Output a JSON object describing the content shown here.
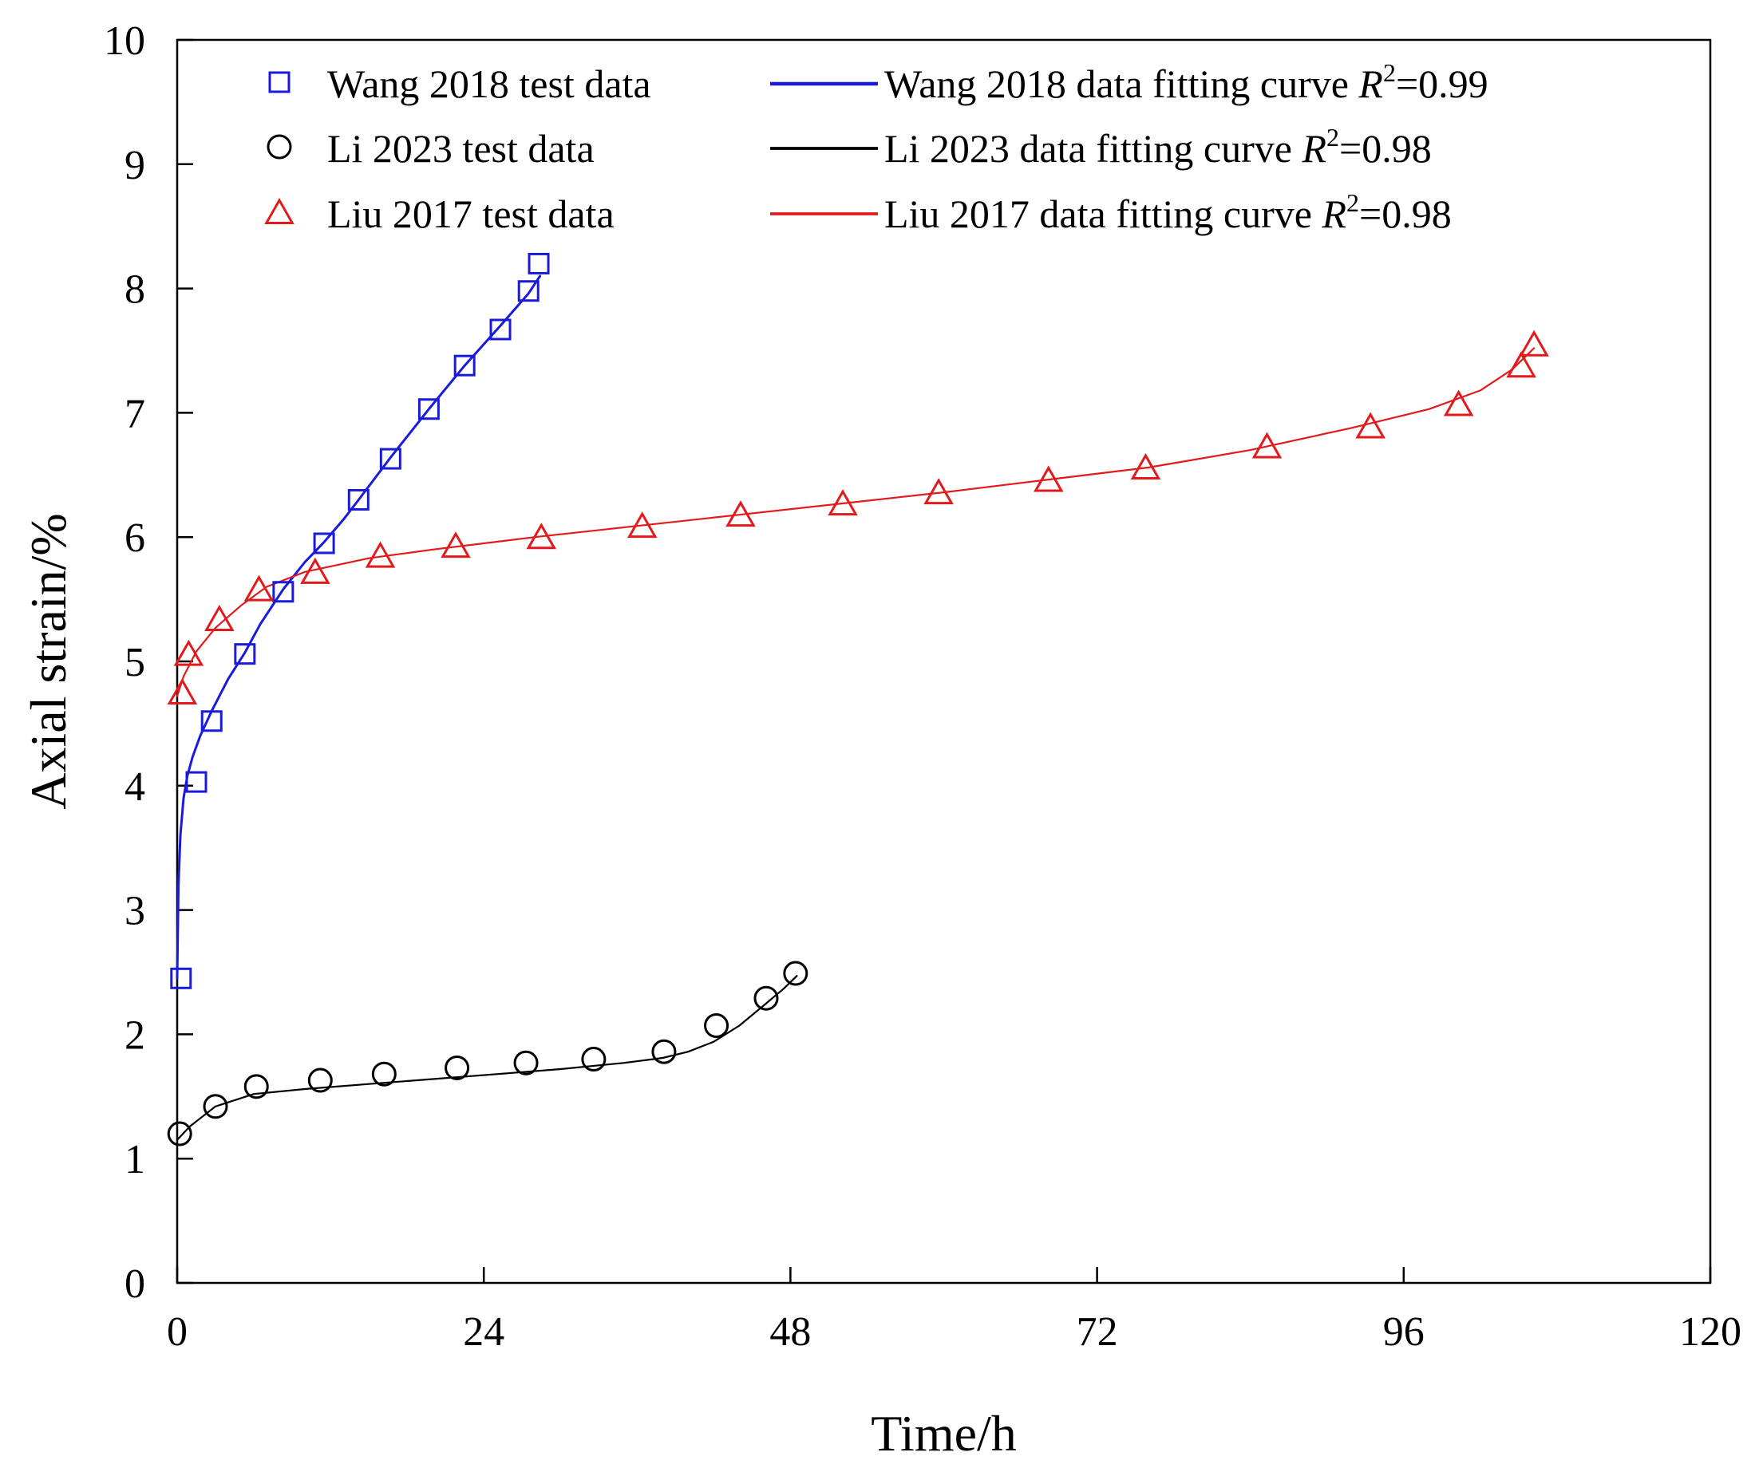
{
  "chart_data": {
    "type": "scatter",
    "title": "",
    "xlabel": "Time/h",
    "ylabel": "Axial strain/%",
    "xlim": [
      0,
      120
    ],
    "ylim": [
      0,
      10
    ],
    "xticks": [
      0,
      24,
      48,
      72,
      96,
      120
    ],
    "yticks": [
      0,
      1,
      2,
      3,
      4,
      5,
      6,
      7,
      8,
      9,
      10
    ],
    "grid": false,
    "legend_position": "top",
    "series": [
      {
        "name": "Wang 2018 test data",
        "kind": "markers",
        "marker": "square",
        "color": "#1a1adc",
        "x": [
          0.3,
          1.5,
          2.7,
          5.3,
          8.3,
          11.5,
          14.2,
          16.7,
          19.7,
          22.5,
          25.3,
          27.5,
          28.3
        ],
        "y": [
          2.45,
          4.03,
          4.52,
          5.06,
          5.56,
          5.95,
          6.3,
          6.63,
          7.03,
          7.38,
          7.67,
          7.98,
          8.2
        ]
      },
      {
        "name": "Li 2023 test data",
        "kind": "markers",
        "marker": "circle",
        "color": "#000000",
        "x": [
          0.2,
          3.0,
          6.2,
          11.2,
          16.2,
          21.9,
          27.3,
          32.6,
          38.1,
          42.2,
          46.1,
          48.4
        ],
        "y": [
          1.2,
          1.42,
          1.58,
          1.63,
          1.68,
          1.73,
          1.77,
          1.8,
          1.86,
          2.07,
          2.29,
          2.49
        ]
      },
      {
        "name": "Liu 2017 test data",
        "kind": "markers",
        "marker": "triangle",
        "color": "#e31a1c",
        "x": [
          0.4,
          0.9,
          3.3,
          6.4,
          10.8,
          15.9,
          21.8,
          28.5,
          36.4,
          44.1,
          52.1,
          59.6,
          68.2,
          75.8,
          85.3,
          93.4,
          100.3,
          105.2,
          106.2
        ],
        "y": [
          4.75,
          5.06,
          5.34,
          5.58,
          5.72,
          5.85,
          5.93,
          6.0,
          6.09,
          6.18,
          6.27,
          6.36,
          6.46,
          6.56,
          6.73,
          6.89,
          7.07,
          7.38,
          7.55
        ]
      },
      {
        "name": "Wang 2018 data fitting curve",
        "r2_label": "R",
        "r2_sup": "2",
        "r2_value": "=0.99",
        "kind": "line",
        "line_width": 3,
        "color": "#1a1adc",
        "x": [
          0.0,
          0.1,
          0.25,
          0.5,
          0.8,
          1.2,
          1.8,
          2.7,
          4.0,
          5.3,
          6.5,
          8.3,
          10.0,
          11.5,
          13.0,
          14.2,
          16.7,
          19.7,
          22.5,
          25.3,
          27.5,
          28.4
        ],
        "y": [
          2.45,
          3.2,
          3.6,
          3.9,
          4.08,
          4.23,
          4.4,
          4.6,
          4.86,
          5.07,
          5.3,
          5.58,
          5.8,
          5.96,
          6.14,
          6.3,
          6.64,
          7.03,
          7.38,
          7.7,
          7.96,
          8.1
        ]
      },
      {
        "name": "Li 2023 data fitting curve",
        "r2_label": "R",
        "r2_sup": "2",
        "r2_value": "=0.98",
        "kind": "line",
        "line_width": 2.2,
        "color": "#000000",
        "x": [
          0.0,
          1.0,
          3.0,
          6.0,
          10.0,
          15.0,
          20.0,
          25.0,
          30.0,
          35.0,
          38.0,
          40.0,
          42.0,
          44.0,
          46.0,
          47.5,
          48.5
        ],
        "y": [
          1.15,
          1.26,
          1.42,
          1.52,
          1.56,
          1.6,
          1.64,
          1.68,
          1.72,
          1.77,
          1.81,
          1.86,
          1.94,
          2.07,
          2.24,
          2.37,
          2.47
        ]
      },
      {
        "name": "Liu 2017 data fitting curve",
        "r2_label": "R",
        "r2_sup": "2",
        "r2_value": "=0.98",
        "kind": "line",
        "line_width": 2.2,
        "color": "#e31a1c",
        "x": [
          0.0,
          0.5,
          1.5,
          3.0,
          5.0,
          7.0,
          10.0,
          15.0,
          20.0,
          28.0,
          36.0,
          44.0,
          52.0,
          60.0,
          68.0,
          76.0,
          84.0,
          92.0,
          98.0,
          102.0,
          104.5,
          106.2
        ],
        "y": [
          4.72,
          4.88,
          5.08,
          5.27,
          5.45,
          5.6,
          5.72,
          5.83,
          5.9,
          6.0,
          6.09,
          6.18,
          6.27,
          6.36,
          6.46,
          6.56,
          6.7,
          6.88,
          7.03,
          7.18,
          7.35,
          7.52
        ]
      }
    ]
  }
}
